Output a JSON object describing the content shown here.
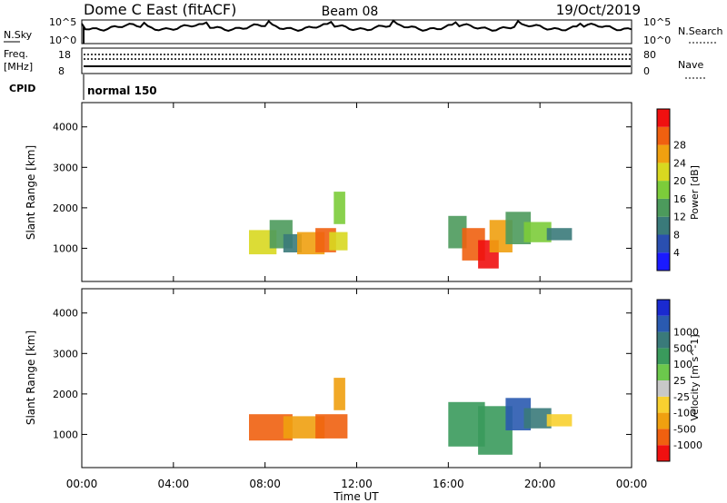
{
  "header": {
    "station": "Dome C East (fitACF)",
    "beam": "Beam 08",
    "date": "19/Oct/2019"
  },
  "summary": {
    "nsky_label": "N.Sky",
    "nsky_top": "10^5",
    "nsky_bottom": "10^0",
    "nsearch_label": "N.Search",
    "nsearch_top": "10^5",
    "nsearch_bottom": "10^0",
    "freq_label": "Freq.",
    "freq_unit": "[MHz]",
    "freq_top": "18",
    "freq_bottom": "8",
    "nave_label": "Nave",
    "nave_top": "80",
    "nave_bottom": "0",
    "cpid_label": "CPID",
    "cpid_value": "normal 150"
  },
  "colors": {
    "power": [
      "#1a1aff",
      "#2a4fb0",
      "#3a7a7a",
      "#4c9a5c",
      "#7ccc3a",
      "#d8d820",
      "#f0a010",
      "#f06010",
      "#f01010"
    ],
    "velocity": [
      "#f01010",
      "#f06010",
      "#f0a010",
      "#f8d030",
      "#c8c8c8",
      "#6cc84c",
      "#3a9a5c",
      "#3a7a7a",
      "#2a5ab0",
      "#1a2ad0"
    ]
  },
  "chart_data": [
    {
      "type": "heatmap",
      "name": "power",
      "ylabel": "Slant Range [km]",
      "yticks": [
        "1000",
        "2000",
        "3000",
        "4000"
      ],
      "colorbar_label": "Power [dB]",
      "colorbar_ticks": [
        "4",
        "8",
        "12",
        "16",
        "20",
        "24",
        "28"
      ],
      "xlim_hours": [
        0,
        24
      ],
      "ylim_km": [
        180,
        4600
      ],
      "patches": [
        {
          "t0": 7.3,
          "t1": 8.5,
          "r0": 850,
          "r1": 1450,
          "c": 5
        },
        {
          "t0": 8.2,
          "t1": 9.2,
          "r0": 1000,
          "r1": 1700,
          "c": 3
        },
        {
          "t0": 8.8,
          "t1": 9.6,
          "r0": 900,
          "r1": 1350,
          "c": 2
        },
        {
          "t0": 9.4,
          "t1": 10.6,
          "r0": 850,
          "r1": 1400,
          "c": 6
        },
        {
          "t0": 10.2,
          "t1": 11.1,
          "r0": 900,
          "r1": 1500,
          "c": 7
        },
        {
          "t0": 10.8,
          "t1": 11.6,
          "r0": 950,
          "r1": 1400,
          "c": 5
        },
        {
          "t0": 11.0,
          "t1": 11.5,
          "r0": 1600,
          "r1": 2400,
          "c": 4
        },
        {
          "t0": 16.0,
          "t1": 16.8,
          "r0": 1000,
          "r1": 1800,
          "c": 3
        },
        {
          "t0": 16.6,
          "t1": 17.6,
          "r0": 700,
          "r1": 1500,
          "c": 7
        },
        {
          "t0": 17.3,
          "t1": 18.2,
          "r0": 500,
          "r1": 1200,
          "c": 8
        },
        {
          "t0": 17.8,
          "t1": 18.8,
          "r0": 900,
          "r1": 1700,
          "c": 6
        },
        {
          "t0": 18.5,
          "t1": 19.6,
          "r0": 1100,
          "r1": 1900,
          "c": 3
        },
        {
          "t0": 19.3,
          "t1": 20.5,
          "r0": 1150,
          "r1": 1650,
          "c": 4
        },
        {
          "t0": 20.3,
          "t1": 21.4,
          "r0": 1200,
          "r1": 1500,
          "c": 2
        }
      ]
    },
    {
      "type": "heatmap",
      "name": "velocity",
      "ylabel": "Slant Range [km]",
      "yticks": [
        "1000",
        "2000",
        "3000",
        "4000"
      ],
      "colorbar_label": "Velocity [m s^-1]",
      "colorbar_ticks": [
        "-1000",
        "-500",
        "-100",
        "-25",
        "25",
        "100",
        "500",
        "1000"
      ],
      "xlim_hours": [
        0,
        24
      ],
      "ylim_km": [
        180,
        4600
      ],
      "xticks": [
        "00:00",
        "04:00",
        "08:00",
        "12:00",
        "16:00",
        "20:00",
        "00:00"
      ],
      "xlabel": "Time UT",
      "patches": [
        {
          "t0": 7.3,
          "t1": 9.2,
          "r0": 850,
          "r1": 1500,
          "c": 1
        },
        {
          "t0": 8.8,
          "t1": 10.6,
          "r0": 900,
          "r1": 1450,
          "c": 2
        },
        {
          "t0": 10.2,
          "t1": 11.6,
          "r0": 900,
          "r1": 1500,
          "c": 1
        },
        {
          "t0": 11.0,
          "t1": 11.5,
          "r0": 1600,
          "r1": 2400,
          "c": 2
        },
        {
          "t0": 16.0,
          "t1": 17.6,
          "r0": 700,
          "r1": 1800,
          "c": 6
        },
        {
          "t0": 17.3,
          "t1": 18.8,
          "r0": 500,
          "r1": 1700,
          "c": 6
        },
        {
          "t0": 18.5,
          "t1": 19.6,
          "r0": 1100,
          "r1": 1900,
          "c": 8
        },
        {
          "t0": 19.3,
          "t1": 20.5,
          "r0": 1150,
          "r1": 1650,
          "c": 7
        },
        {
          "t0": 20.3,
          "t1": 21.4,
          "r0": 1200,
          "r1": 1500,
          "c": 3
        }
      ]
    }
  ]
}
